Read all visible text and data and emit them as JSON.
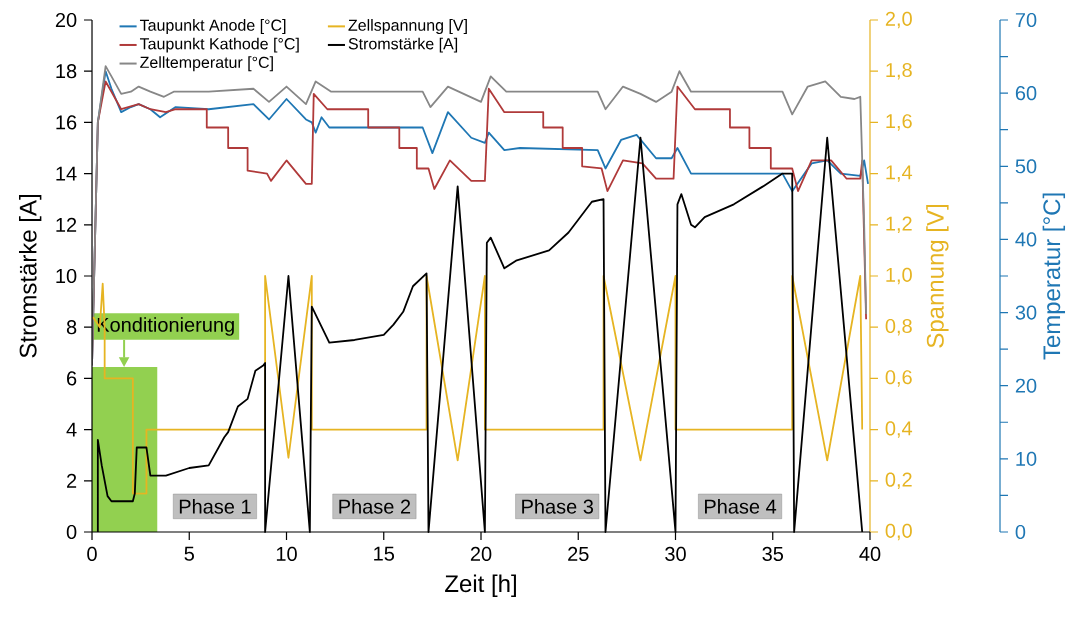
{
  "chart_data": {
    "type": "line",
    "xlabel": "Zeit [h]",
    "ylabel": "Stromstärke [A]",
    "y2label": "Spannung [V]",
    "y3label": "Temperatur [°C]",
    "xlim": [
      0,
      40
    ],
    "xticks": [
      0,
      5,
      10,
      15,
      20,
      25,
      30,
      35,
      40
    ],
    "ylim": [
      0,
      20
    ],
    "yticks": [
      0,
      2,
      4,
      6,
      8,
      10,
      12,
      14,
      16,
      18,
      20
    ],
    "y2lim": [
      0,
      2
    ],
    "y2ticks": [
      {
        "value": 0,
        "label": "0,0"
      },
      {
        "value": 0.2,
        "label": "0,2"
      },
      {
        "value": 0.4,
        "label": "0,4"
      },
      {
        "value": 0.6,
        "label": "0,6"
      },
      {
        "value": 0.8,
        "label": "0,8"
      },
      {
        "value": 1.0,
        "label": "1,0"
      },
      {
        "value": 1.2,
        "label": "1,2"
      },
      {
        "value": 1.4,
        "label": "1,4"
      },
      {
        "value": 1.6,
        "label": "1,6"
      },
      {
        "value": 1.8,
        "label": "1,8"
      },
      {
        "value": 2.0,
        "label": "2,0"
      }
    ],
    "y3lim": [
      0,
      70
    ],
    "y3ticks": [
      0,
      10,
      20,
      30,
      40,
      50,
      60,
      70
    ],
    "legend": "top left",
    "grid": false,
    "marker": "none",
    "line_style": "solid",
    "series": [
      {
        "name": "Taupunkt Anode [°C]",
        "color": "#1f77b4",
        "axis": "y3",
        "x": [
          0,
          0.3,
          0.7,
          1.0,
          1.5,
          2.0,
          2.4,
          3.0,
          3.5,
          4.3,
          6,
          8.3,
          9.1,
          10.0,
          11.0,
          11.3,
          11.5,
          11.8,
          12.2,
          17.0,
          17.5,
          18.3,
          19.5,
          20.2,
          20.4,
          21.2,
          22,
          26.0,
          26.4,
          27.2,
          28.0,
          29.0,
          29.8,
          30.1,
          30.8,
          35.5,
          36.0,
          37.0,
          37.8,
          38.5,
          39.5,
          39.7,
          39.9
        ],
        "values": [
          22.8,
          56,
          63,
          60.6,
          57.4,
          58.1,
          58.5,
          57.8,
          56.7,
          58.1,
          57.8,
          58.5,
          56.4,
          59.2,
          56.4,
          56,
          54.6,
          56.7,
          55.3,
          55.3,
          51.8,
          57.4,
          53.9,
          53.2,
          54.6,
          52.2,
          52.5,
          52.2,
          49.7,
          53.6,
          54.3,
          51.1,
          51.1,
          52.5,
          49,
          49,
          46.6,
          50.4,
          50.8,
          49,
          48.7,
          50.8,
          47.6
        ]
      },
      {
        "name": "Taupunkt Kathode [°C]",
        "color": "#b03a3a",
        "axis": "y3",
        "x": [
          0,
          0.3,
          0.7,
          1.0,
          1.5,
          2.4,
          3.0,
          3.8,
          4.3,
          5.9,
          5.9,
          7.0,
          7.0,
          8.0,
          8.0,
          9.0,
          9.2,
          10.0,
          11.0,
          11.3,
          11.4,
          12.1,
          14.2,
          14.2,
          15.8,
          15.8,
          16.7,
          16.7,
          17.3,
          17.6,
          18.4,
          19.5,
          20.2,
          20.4,
          21.2,
          23.2,
          23.2,
          24.2,
          24.2,
          25.2,
          25.2,
          26.2,
          26.5,
          27.3,
          28.3,
          29.0,
          29.9,
          30.1,
          31.0,
          32.8,
          32.8,
          33.8,
          33.8,
          34.9,
          34.9,
          36.0,
          36.3,
          37.0,
          38.0,
          38.8,
          39.5,
          39.6,
          39.8
        ],
        "values": [
          22.8,
          56,
          61.6,
          60.2,
          57.8,
          58.5,
          57.8,
          57.4,
          57.8,
          57.8,
          55.3,
          55.3,
          52.5,
          52.5,
          49.4,
          49,
          48,
          50.8,
          47.6,
          47.6,
          59.9,
          57.8,
          57.8,
          55.3,
          55.3,
          52.5,
          52.5,
          49.7,
          49.7,
          46.9,
          50.8,
          48,
          48,
          60.6,
          57.4,
          57.4,
          55.3,
          55.3,
          52.5,
          52.5,
          50,
          49.7,
          46.6,
          50.8,
          50.4,
          48.3,
          48.3,
          60.9,
          57.8,
          57.8,
          55.3,
          55.3,
          52.5,
          52.5,
          49.7,
          49.7,
          46.6,
          50.8,
          50.8,
          48.3,
          48.3,
          50.8,
          29.1
        ]
      },
      {
        "name": "Zelltemperatur [°C]",
        "color": "#878787",
        "axis": "y3",
        "x": [
          0,
          0.3,
          0.7,
          1.0,
          1.5,
          2.0,
          2.4,
          3.0,
          3.7,
          4.2,
          6,
          8.3,
          9.1,
          10.0,
          11.0,
          11.5,
          12.3,
          17.0,
          17.4,
          18.3,
          20.0,
          20.5,
          21.3,
          26.0,
          26.4,
          27.3,
          28.2,
          29.0,
          29.8,
          30.2,
          30.8,
          35.5,
          36.0,
          36.8,
          37.7,
          38.5,
          39.2,
          39.5,
          39.7,
          39.8
        ],
        "values": [
          22.8,
          56,
          63.7,
          62.3,
          59.9,
          60.2,
          60.9,
          60.2,
          59.5,
          60.2,
          60.2,
          60.6,
          58.8,
          60.9,
          58.5,
          61.6,
          60.2,
          60.2,
          58.1,
          60.9,
          58.8,
          62.3,
          60.2,
          60.2,
          57.8,
          60.9,
          59.9,
          58.8,
          60.2,
          63.0,
          60.2,
          60.2,
          57.1,
          60.9,
          61.6,
          59.5,
          59.2,
          59.5,
          42,
          29.8
        ]
      },
      {
        "name": "Zellspannung [V]",
        "color": "#e6b422",
        "axis": "y2",
        "x": [
          0.05,
          0.4,
          0.55,
          0.65,
          0.65,
          2.1,
          2.1,
          2.8,
          2.8,
          8.9,
          8.9,
          10.1,
          11.3,
          11.3,
          17.2,
          17.2,
          18.8,
          20.2,
          20.2,
          26.3,
          26.3,
          28.2,
          30.0,
          30.0,
          36.0,
          36.0,
          37.8,
          39.5,
          39.6
        ],
        "values": [
          0.84,
          0.8,
          0.97,
          0.8,
          0.6,
          0.6,
          0.15,
          0.15,
          0.4,
          0.4,
          1.0,
          0.29,
          1.0,
          0.4,
          0.4,
          1.0,
          0.28,
          1.0,
          0.4,
          0.4,
          1.0,
          0.28,
          1.0,
          0.4,
          0.4,
          1.0,
          0.28,
          1.0,
          0.4
        ]
      },
      {
        "name": "Stromstärke [A]",
        "color": "#000000",
        "x": [
          0.3,
          0.3,
          0.5,
          0.8,
          1.0,
          2.1,
          2.2,
          2.3,
          2.8,
          3.0,
          3.8,
          5.0,
          6.0,
          6.8,
          7.0,
          7.5,
          8.0,
          8.4,
          8.8,
          8.9,
          8.9,
          10.1,
          11.2,
          11.3,
          12.2,
          13.5,
          15.0,
          15.5,
          16.0,
          16.5,
          17.2,
          17.3,
          18.8,
          20.2,
          20.3,
          20.5,
          21.2,
          21.8,
          23.5,
          24.5,
          25.0,
          25.7,
          26.3,
          26.4,
          28.2,
          30.0,
          30.1,
          30.3,
          30.8,
          31.0,
          31.5,
          33.0,
          34.5,
          35.5,
          36.0,
          36.1,
          37.8,
          39.6
        ],
        "values": [
          0,
          3.6,
          2.6,
          1.4,
          1.2,
          1.2,
          1.5,
          3.3,
          3.3,
          2.2,
          2.2,
          2.5,
          2.6,
          3.7,
          3.9,
          4.9,
          5.2,
          6.3,
          6.5,
          6.6,
          0,
          10.0,
          0,
          8.8,
          7.4,
          7.5,
          7.7,
          8.1,
          8.6,
          9.6,
          10.1,
          0,
          13.5,
          0,
          11.3,
          11.5,
          10.3,
          10.6,
          11.0,
          11.7,
          12.2,
          12.9,
          13.0,
          0,
          15.4,
          0,
          12.8,
          13.2,
          12.0,
          11.9,
          12.3,
          12.8,
          13.5,
          14.0,
          14.0,
          0,
          15.4,
          0
        ]
      }
    ],
    "bands": [
      {
        "axis": "x",
        "from": 0,
        "to": 3.3,
        "label": "Konditionierung",
        "color": "#92d050"
      }
    ],
    "annotations": [
      "Phase 1",
      "Phase 2",
      "Phase 3",
      "Phase 4"
    ]
  }
}
